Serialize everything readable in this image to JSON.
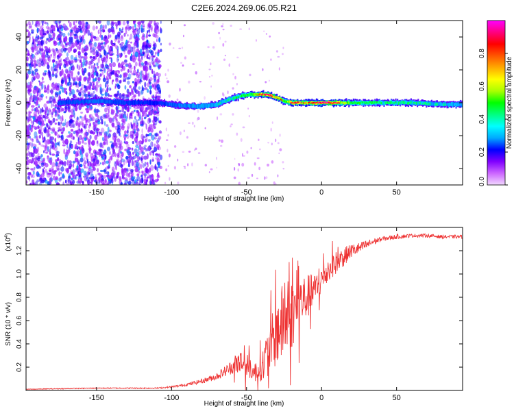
{
  "title": "C2E6.2024.269.06.05.R21",
  "chart_data": [
    {
      "type": "heatmap",
      "xlabel": "Height of straight line (km)",
      "ylabel": "Frequency (Hz)",
      "xlim": [
        -197,
        94
      ],
      "ylim": [
        -50,
        50
      ],
      "x_ticks": [
        -150,
        -100,
        -50,
        0,
        50
      ],
      "y_ticks": [
        -40,
        -20,
        0,
        20,
        40
      ],
      "colorbar": {
        "label": "Normalized spectral amplitude",
        "range": [
          0,
          1
        ],
        "ticks": [
          0.0,
          0.2,
          0.4,
          0.6,
          0.8
        ],
        "tick_labels": [
          "0.0",
          "0.2",
          "0.4",
          "0.6",
          "0.8"
        ],
        "colormap": [
          "#f2d9ff",
          "#cc66ff",
          "#8000ff",
          "#0000ff",
          "#00aaff",
          "#00ffff",
          "#00ff80",
          "#00ff00",
          "#aaff00",
          "#ffff00",
          "#ffaa00",
          "#ff5500",
          "#ff0000",
          "#ff0080",
          "#ff00ff"
        ]
      },
      "ridge": {
        "x": [
          -175,
          -150,
          -130,
          -110,
          -100,
          -90,
          -80,
          -70,
          -62,
          -55,
          -48,
          -42,
          -36,
          -30,
          -25,
          -20,
          -10,
          0,
          10,
          20,
          40,
          60,
          80,
          94
        ],
        "y": [
          0,
          1,
          0,
          0,
          -1,
          -2,
          -2,
          -1,
          2,
          4,
          5,
          5,
          5,
          3,
          1,
          0,
          0,
          0,
          0,
          0,
          0,
          0,
          -1,
          -1
        ],
        "amplitude": [
          0.25,
          0.3,
          0.25,
          0.2,
          0.3,
          0.35,
          0.38,
          0.4,
          0.45,
          0.5,
          0.55,
          0.7,
          0.85,
          0.75,
          0.6,
          0.8,
          0.7,
          0.85,
          0.8,
          0.55,
          0.5,
          0.45,
          0.4,
          0.4
        ]
      },
      "scatter_region": {
        "x": [
          -197,
          -107
        ],
        "y": [
          -50,
          50
        ],
        "amplitude": [
          0.02,
          0.2
        ]
      }
    },
    {
      "type": "line",
      "xlabel": "Height of straight line (km)",
      "ylabel": "SNR (10 * v/v)",
      "y_multiplier": "(x10",
      "y_multiplier_exp": "4",
      "xlim": [
        -197,
        94
      ],
      "ylim": [
        0,
        1.4
      ],
      "x_ticks": [
        -150,
        -100,
        -50,
        0,
        50
      ],
      "y_ticks": [
        0.2,
        0.4,
        0.6,
        0.8,
        1.0,
        1.2
      ],
      "color": "#ee3333",
      "envelope": {
        "x": [
          -197,
          -150,
          -110,
          -100,
          -90,
          -80,
          -70,
          -60,
          -55,
          -50,
          -45,
          -40,
          -35,
          -30,
          -25,
          -20,
          -15,
          -10,
          -5,
          0,
          5,
          10,
          15,
          20,
          25,
          30,
          35,
          40,
          50,
          60,
          70,
          80,
          94
        ],
        "mean": [
          0.01,
          0.02,
          0.02,
          0.03,
          0.05,
          0.08,
          0.12,
          0.2,
          0.25,
          0.22,
          0.15,
          0.2,
          0.35,
          0.5,
          0.6,
          0.65,
          0.75,
          0.8,
          0.85,
          0.95,
          1.05,
          1.1,
          1.15,
          1.2,
          1.22,
          1.25,
          1.28,
          1.3,
          1.32,
          1.33,
          1.33,
          1.32,
          1.32
        ],
        "noise": [
          0.003,
          0.004,
          0.005,
          0.008,
          0.012,
          0.02,
          0.03,
          0.06,
          0.12,
          0.1,
          0.08,
          0.12,
          0.2,
          0.3,
          0.35,
          0.3,
          0.25,
          0.2,
          0.15,
          0.12,
          0.1,
          0.1,
          0.08,
          0.06,
          0.05,
          0.04,
          0.03,
          0.02,
          0.02,
          0.015,
          0.015,
          0.015,
          0.015
        ]
      }
    }
  ]
}
